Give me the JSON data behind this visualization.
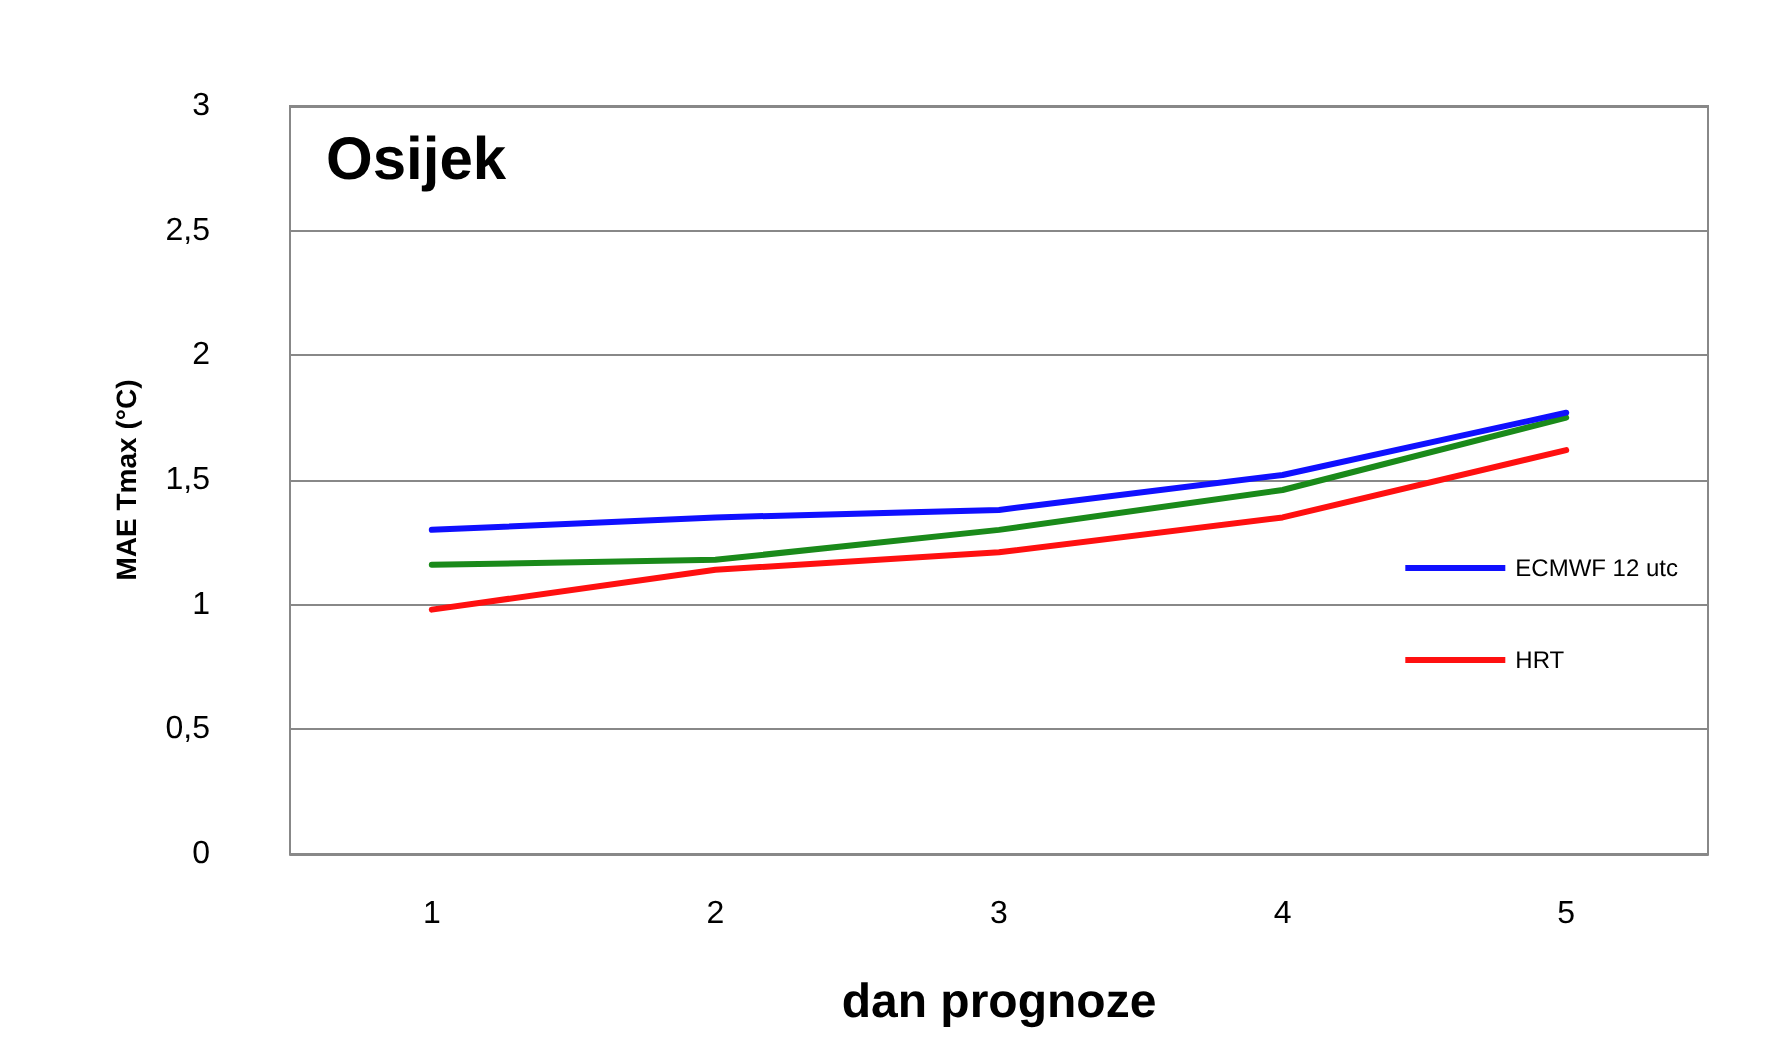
{
  "chart_data": {
    "type": "line",
    "title": "Osijek",
    "xlabel": "dan prognoze",
    "ylabel": "MAE Tmax (°C)",
    "categories": [
      "1",
      "2",
      "3",
      "4",
      "5"
    ],
    "series": [
      {
        "color": "#1a8a1a",
        "values": [
          1.16,
          1.18,
          1.3,
          1.46,
          1.75
        ]
      },
      {
        "name": "ECMWF 12 utc",
        "color": "#1010ff",
        "values": [
          1.3,
          1.35,
          1.38,
          1.52,
          1.77
        ]
      },
      {
        "name": "HRT",
        "color": "#ff1010",
        "values": [
          0.98,
          1.14,
          1.21,
          1.35,
          1.62
        ]
      }
    ],
    "ylim": [
      0,
      3
    ],
    "yticks": [
      0,
      {
        "value": 0.5,
        "label": "0,5"
      },
      1,
      {
        "value": 1.5,
        "label": "1,5"
      },
      2,
      {
        "value": 2.5,
        "label": "2,5"
      },
      3
    ],
    "grid": "y",
    "legend": "right",
    "marker": "none",
    "line_style": "solid"
  }
}
